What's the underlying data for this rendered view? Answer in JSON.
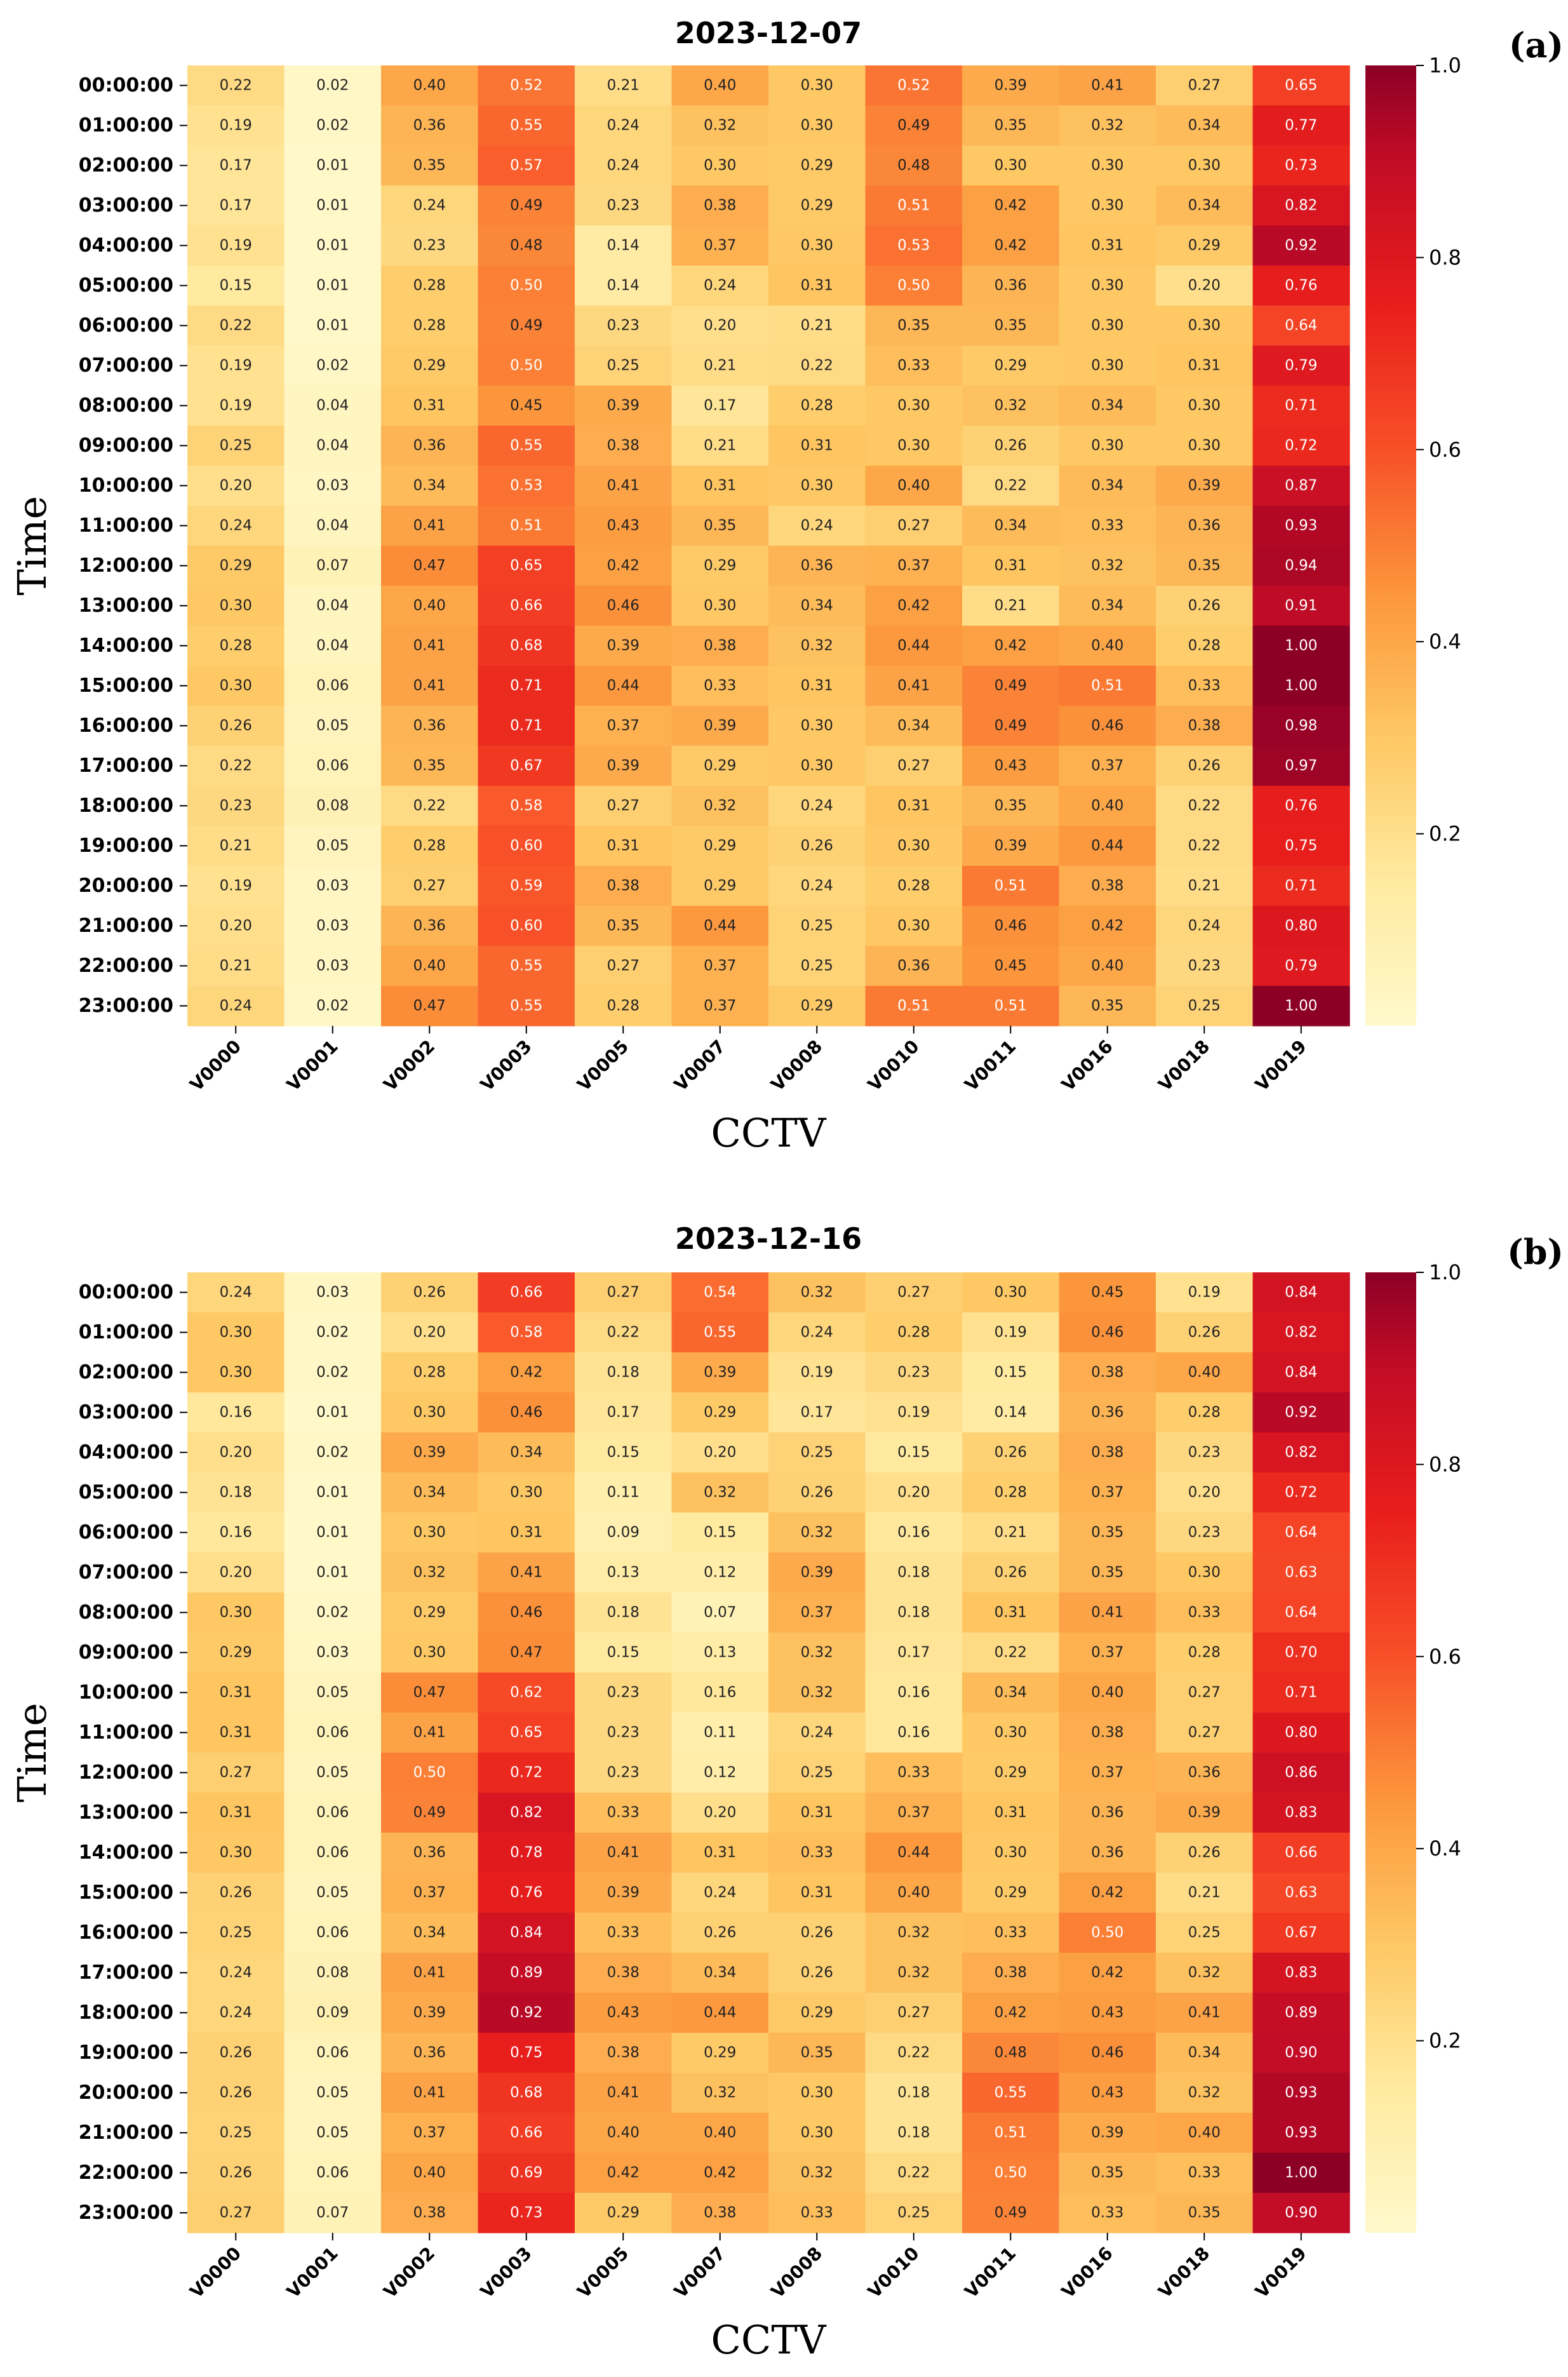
{
  "chart_data": [
    {
      "type": "heatmap",
      "title": "2023-12-07",
      "panel_label": "(a)",
      "xlabel": "CCTV",
      "ylabel": "Time",
      "x_categories": [
        "V0000",
        "V0001",
        "V0002",
        "V0003",
        "V0005",
        "V0007",
        "V0008",
        "V0010",
        "V0011",
        "V0016",
        "V0018",
        "V0019"
      ],
      "y_categories": [
        "00:00:00",
        "01:00:00",
        "02:00:00",
        "03:00:00",
        "04:00:00",
        "05:00:00",
        "06:00:00",
        "07:00:00",
        "08:00:00",
        "09:00:00",
        "10:00:00",
        "11:00:00",
        "12:00:00",
        "13:00:00",
        "14:00:00",
        "15:00:00",
        "16:00:00",
        "17:00:00",
        "18:00:00",
        "19:00:00",
        "20:00:00",
        "21:00:00",
        "22:00:00",
        "23:00:00"
      ],
      "values": [
        [
          "0.22",
          "0.02",
          "0.40",
          "0.52",
          "0.21",
          "0.40",
          "0.30",
          "0.52",
          "0.39",
          "0.41",
          "0.27",
          "0.65"
        ],
        [
          "0.19",
          "0.02",
          "0.36",
          "0.55",
          "0.24",
          "0.32",
          "0.30",
          "0.49",
          "0.35",
          "0.32",
          "0.34",
          "0.77"
        ],
        [
          "0.17",
          "0.01",
          "0.35",
          "0.57",
          "0.24",
          "0.30",
          "0.29",
          "0.48",
          "0.30",
          "0.30",
          "0.30",
          "0.73"
        ],
        [
          "0.17",
          "0.01",
          "0.24",
          "0.49",
          "0.23",
          "0.38",
          "0.29",
          "0.51",
          "0.42",
          "0.30",
          "0.34",
          "0.82"
        ],
        [
          "0.19",
          "0.01",
          "0.23",
          "0.48",
          "0.14",
          "0.37",
          "0.30",
          "0.53",
          "0.42",
          "0.31",
          "0.29",
          "0.92"
        ],
        [
          "0.15",
          "0.01",
          "0.28",
          "0.50",
          "0.14",
          "0.24",
          "0.31",
          "0.50",
          "0.36",
          "0.30",
          "0.20",
          "0.76"
        ],
        [
          "0.22",
          "0.01",
          "0.28",
          "0.49",
          "0.23",
          "0.20",
          "0.21",
          "0.35",
          "0.35",
          "0.30",
          "0.30",
          "0.64"
        ],
        [
          "0.19",
          "0.02",
          "0.29",
          "0.50",
          "0.25",
          "0.21",
          "0.22",
          "0.33",
          "0.29",
          "0.30",
          "0.31",
          "0.79"
        ],
        [
          "0.19",
          "0.04",
          "0.31",
          "0.45",
          "0.39",
          "0.17",
          "0.28",
          "0.30",
          "0.32",
          "0.34",
          "0.30",
          "0.71"
        ],
        [
          "0.25",
          "0.04",
          "0.36",
          "0.55",
          "0.38",
          "0.21",
          "0.31",
          "0.30",
          "0.26",
          "0.30",
          "0.30",
          "0.72"
        ],
        [
          "0.20",
          "0.03",
          "0.34",
          "0.53",
          "0.41",
          "0.31",
          "0.30",
          "0.40",
          "0.22",
          "0.34",
          "0.39",
          "0.87"
        ],
        [
          "0.24",
          "0.04",
          "0.41",
          "0.51",
          "0.43",
          "0.35",
          "0.24",
          "0.27",
          "0.34",
          "0.33",
          "0.36",
          "0.93"
        ],
        [
          "0.29",
          "0.07",
          "0.47",
          "0.65",
          "0.42",
          "0.29",
          "0.36",
          "0.37",
          "0.31",
          "0.32",
          "0.35",
          "0.94"
        ],
        [
          "0.30",
          "0.04",
          "0.40",
          "0.66",
          "0.46",
          "0.30",
          "0.34",
          "0.42",
          "0.21",
          "0.34",
          "0.26",
          "0.91"
        ],
        [
          "0.28",
          "0.04",
          "0.41",
          "0.68",
          "0.39",
          "0.38",
          "0.32",
          "0.44",
          "0.42",
          "0.40",
          "0.28",
          "1.00"
        ],
        [
          "0.30",
          "0.06",
          "0.41",
          "0.71",
          "0.44",
          "0.33",
          "0.31",
          "0.41",
          "0.49",
          "0.51",
          "0.33",
          "1.00"
        ],
        [
          "0.26",
          "0.05",
          "0.36",
          "0.71",
          "0.37",
          "0.39",
          "0.30",
          "0.34",
          "0.49",
          "0.46",
          "0.38",
          "0.98"
        ],
        [
          "0.22",
          "0.06",
          "0.35",
          "0.67",
          "0.39",
          "0.29",
          "0.30",
          "0.27",
          "0.43",
          "0.37",
          "0.26",
          "0.97"
        ],
        [
          "0.23",
          "0.08",
          "0.22",
          "0.58",
          "0.27",
          "0.32",
          "0.24",
          "0.31",
          "0.35",
          "0.40",
          "0.22",
          "0.76"
        ],
        [
          "0.21",
          "0.05",
          "0.28",
          "0.60",
          "0.31",
          "0.29",
          "0.26",
          "0.30",
          "0.39",
          "0.44",
          "0.22",
          "0.75"
        ],
        [
          "0.19",
          "0.03",
          "0.27",
          "0.59",
          "0.38",
          "0.29",
          "0.24",
          "0.28",
          "0.51",
          "0.38",
          "0.21",
          "0.71"
        ],
        [
          "0.20",
          "0.03",
          "0.36",
          "0.60",
          "0.35",
          "0.44",
          "0.25",
          "0.30",
          "0.46",
          "0.42",
          "0.24",
          "0.80"
        ],
        [
          "0.21",
          "0.03",
          "0.40",
          "0.55",
          "0.27",
          "0.37",
          "0.25",
          "0.36",
          "0.45",
          "0.40",
          "0.23",
          "0.79"
        ],
        [
          "0.24",
          "0.02",
          "0.47",
          "0.55",
          "0.28",
          "0.37",
          "0.29",
          "0.51",
          "0.51",
          "0.35",
          "0.25",
          "1.00"
        ]
      ],
      "colorbar": {
        "min": 0.0,
        "max": 1.0,
        "ticks": [
          "0.2",
          "0.4",
          "0.6",
          "0.8",
          "1.0"
        ],
        "colormap": "YlOrRd"
      }
    },
    {
      "type": "heatmap",
      "title": "2023-12-16",
      "panel_label": "(b)",
      "xlabel": "CCTV",
      "ylabel": "Time",
      "x_categories": [
        "V0000",
        "V0001",
        "V0002",
        "V0003",
        "V0005",
        "V0007",
        "V0008",
        "V0010",
        "V0011",
        "V0016",
        "V0018",
        "V0019"
      ],
      "y_categories": [
        "00:00:00",
        "01:00:00",
        "02:00:00",
        "03:00:00",
        "04:00:00",
        "05:00:00",
        "06:00:00",
        "07:00:00",
        "08:00:00",
        "09:00:00",
        "10:00:00",
        "11:00:00",
        "12:00:00",
        "13:00:00",
        "14:00:00",
        "15:00:00",
        "16:00:00",
        "17:00:00",
        "18:00:00",
        "19:00:00",
        "20:00:00",
        "21:00:00",
        "22:00:00",
        "23:00:00"
      ],
      "values": [
        [
          "0.24",
          "0.03",
          "0.26",
          "0.66",
          "0.27",
          "0.54",
          "0.32",
          "0.27",
          "0.30",
          "0.45",
          "0.19",
          "0.84"
        ],
        [
          "0.30",
          "0.02",
          "0.20",
          "0.58",
          "0.22",
          "0.55",
          "0.24",
          "0.28",
          "0.19",
          "0.46",
          "0.26",
          "0.82"
        ],
        [
          "0.30",
          "0.02",
          "0.28",
          "0.42",
          "0.18",
          "0.39",
          "0.19",
          "0.23",
          "0.15",
          "0.38",
          "0.40",
          "0.84"
        ],
        [
          "0.16",
          "0.01",
          "0.30",
          "0.46",
          "0.17",
          "0.29",
          "0.17",
          "0.19",
          "0.14",
          "0.36",
          "0.28",
          "0.92"
        ],
        [
          "0.20",
          "0.02",
          "0.39",
          "0.34",
          "0.15",
          "0.20",
          "0.25",
          "0.15",
          "0.26",
          "0.38",
          "0.23",
          "0.82"
        ],
        [
          "0.18",
          "0.01",
          "0.34",
          "0.30",
          "0.11",
          "0.32",
          "0.26",
          "0.20",
          "0.28",
          "0.37",
          "0.20",
          "0.72"
        ],
        [
          "0.16",
          "0.01",
          "0.30",
          "0.31",
          "0.09",
          "0.15",
          "0.32",
          "0.16",
          "0.21",
          "0.35",
          "0.23",
          "0.64"
        ],
        [
          "0.20",
          "0.01",
          "0.32",
          "0.41",
          "0.13",
          "0.12",
          "0.39",
          "0.18",
          "0.26",
          "0.35",
          "0.30",
          "0.63"
        ],
        [
          "0.30",
          "0.02",
          "0.29",
          "0.46",
          "0.18",
          "0.07",
          "0.37",
          "0.18",
          "0.31",
          "0.41",
          "0.33",
          "0.64"
        ],
        [
          "0.29",
          "0.03",
          "0.30",
          "0.47",
          "0.15",
          "0.13",
          "0.32",
          "0.17",
          "0.22",
          "0.37",
          "0.28",
          "0.70"
        ],
        [
          "0.31",
          "0.05",
          "0.47",
          "0.62",
          "0.23",
          "0.16",
          "0.32",
          "0.16",
          "0.34",
          "0.40",
          "0.27",
          "0.71"
        ],
        [
          "0.31",
          "0.06",
          "0.41",
          "0.65",
          "0.23",
          "0.11",
          "0.24",
          "0.16",
          "0.30",
          "0.38",
          "0.27",
          "0.80"
        ],
        [
          "0.27",
          "0.05",
          "0.50",
          "0.72",
          "0.23",
          "0.12",
          "0.25",
          "0.33",
          "0.29",
          "0.37",
          "0.36",
          "0.86"
        ],
        [
          "0.31",
          "0.06",
          "0.49",
          "0.82",
          "0.33",
          "0.20",
          "0.31",
          "0.37",
          "0.31",
          "0.36",
          "0.39",
          "0.83"
        ],
        [
          "0.30",
          "0.06",
          "0.36",
          "0.78",
          "0.41",
          "0.31",
          "0.33",
          "0.44",
          "0.30",
          "0.36",
          "0.26",
          "0.66"
        ],
        [
          "0.26",
          "0.05",
          "0.37",
          "0.76",
          "0.39",
          "0.24",
          "0.31",
          "0.40",
          "0.29",
          "0.42",
          "0.21",
          "0.63"
        ],
        [
          "0.25",
          "0.06",
          "0.34",
          "0.84",
          "0.33",
          "0.26",
          "0.26",
          "0.32",
          "0.33",
          "0.50",
          "0.25",
          "0.67"
        ],
        [
          "0.24",
          "0.08",
          "0.41",
          "0.89",
          "0.38",
          "0.34",
          "0.26",
          "0.32",
          "0.38",
          "0.42",
          "0.32",
          "0.83"
        ],
        [
          "0.24",
          "0.09",
          "0.39",
          "0.92",
          "0.43",
          "0.44",
          "0.29",
          "0.27",
          "0.42",
          "0.43",
          "0.41",
          "0.89"
        ],
        [
          "0.26",
          "0.06",
          "0.36",
          "0.75",
          "0.38",
          "0.29",
          "0.35",
          "0.22",
          "0.48",
          "0.46",
          "0.34",
          "0.90"
        ],
        [
          "0.26",
          "0.05",
          "0.41",
          "0.68",
          "0.41",
          "0.32",
          "0.30",
          "0.18",
          "0.55",
          "0.43",
          "0.32",
          "0.93"
        ],
        [
          "0.25",
          "0.05",
          "0.37",
          "0.66",
          "0.40",
          "0.40",
          "0.30",
          "0.18",
          "0.51",
          "0.39",
          "0.40",
          "0.93"
        ],
        [
          "0.26",
          "0.06",
          "0.40",
          "0.69",
          "0.42",
          "0.42",
          "0.32",
          "0.22",
          "0.50",
          "0.35",
          "0.33",
          "1.00"
        ],
        [
          "0.27",
          "0.07",
          "0.38",
          "0.73",
          "0.29",
          "0.38",
          "0.33",
          "0.25",
          "0.49",
          "0.33",
          "0.35",
          "0.90"
        ]
      ],
      "colorbar": {
        "min": 0.0,
        "max": 1.0,
        "ticks": [
          "0.2",
          "0.4",
          "0.6",
          "0.8",
          "1.0"
        ],
        "colormap": "YlOrRd"
      }
    }
  ]
}
